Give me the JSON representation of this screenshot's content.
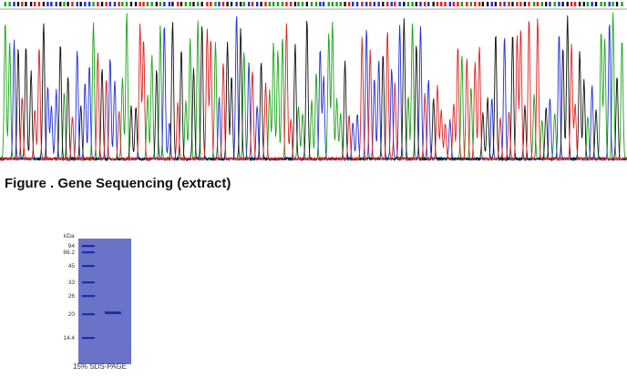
{
  "figure_caption": "Figure . Gene Sequencing (extract)",
  "chromatogram": {
    "base_colors": {
      "A": "#1aa51a",
      "C": "#1f2fd8",
      "G": "#111111",
      "T": "#e02020"
    }
  },
  "gel": {
    "unit_label": "kDa",
    "markers": [
      "94",
      "66.2",
      "45",
      "33",
      "26",
      "20",
      "14.4"
    ],
    "caption": "15% SDS-PAGE",
    "lane_color": "#6b73c9",
    "band_color": "#1d2da3"
  }
}
